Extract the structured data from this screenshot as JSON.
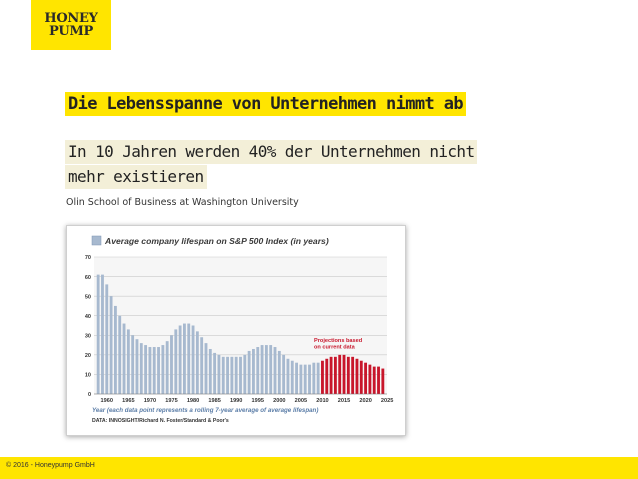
{
  "logo": {
    "line1": "HONEY",
    "line2": "PUMP"
  },
  "heading": "Die Lebensspanne von Unternehmen nimmt ab",
  "subheading": {
    "line1": "In 10 Jahren werden 40% der Unternehmen nicht",
    "line2": "mehr existieren"
  },
  "source": "Olin School of Business at Washington University",
  "footer": "© 2016 - Honeypump GmbH",
  "colors": {
    "accent": "#ffe500",
    "historic": "#a7b9cf",
    "projection": "#c8162b"
  },
  "chart_data": {
    "type": "bar",
    "title": "Average company lifespan on S&P 500 Index (in years)",
    "legend_marker": "historic-blue",
    "xlabel": "Year (each data point represents a rolling 7-year average of average lifespan)",
    "credit": "DATA: INNOSIGHT/Richard N. Foster/Standard & Poor's",
    "annotation": "Projections based on current data",
    "ylim": [
      0,
      70
    ],
    "yticks": [
      0,
      10,
      20,
      30,
      40,
      50,
      60,
      70
    ],
    "xticks": [
      "1960",
      "1965",
      "1970",
      "1975",
      "1980",
      "1985",
      "1990",
      "1995",
      "2000",
      "2005",
      "2010",
      "2015",
      "2020",
      "2025"
    ],
    "x_start": 1958,
    "series": [
      {
        "name": "historic",
        "values": [
          61,
          61,
          56,
          50,
          45,
          40,
          36,
          33,
          30,
          28,
          26,
          25,
          24,
          24,
          24,
          25,
          27,
          30,
          33,
          35,
          36,
          36,
          35,
          32,
          29,
          26,
          23,
          21,
          20,
          19,
          19,
          19,
          19,
          19,
          20,
          22,
          23,
          24,
          25,
          25,
          25,
          24,
          22,
          20,
          18,
          17,
          16,
          15,
          15,
          15,
          16,
          16
        ]
      },
      {
        "name": "projection",
        "values": [
          17,
          18,
          19,
          19,
          20,
          20,
          19,
          19,
          18,
          17,
          16,
          15,
          14,
          14,
          13
        ]
      }
    ]
  }
}
